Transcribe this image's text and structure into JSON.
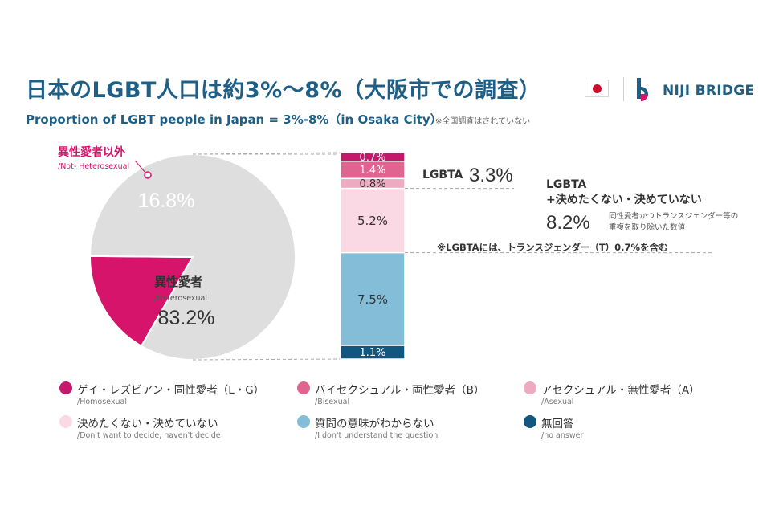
{
  "header": {
    "title": "日本のLGBT人口は約3%〜8%（大阪市での調査）",
    "subtitle": "Proportion of LGBT people in Japan = 3%-8%（in Osaka City）",
    "note": "※全国調査はされていない",
    "brand": "NIJI BRIDGE",
    "icons": [
      "japan-flag-icon",
      "niji-bridge-logo-icon"
    ]
  },
  "chart_data": {
    "type": "pie-of-bar",
    "pie": {
      "slices": [
        {
          "label": "異性愛者以外",
          "sublabel": "/Not- Heterosexual",
          "value": 16.8,
          "display": "16.8%",
          "color": "#d6146c"
        },
        {
          "label": "異性愛者",
          "sublabel": "/Heterosexual",
          "value": 83.2,
          "display": "83.2%",
          "color": "#dedede"
        }
      ]
    },
    "bar": {
      "segments": [
        {
          "value": 0.7,
          "display": "0.7%",
          "color": "#c5186d"
        },
        {
          "value": 1.4,
          "display": "1.4%",
          "color": "#e0648f"
        },
        {
          "value": 0.8,
          "display": "0.8%",
          "color": "#eeaac0"
        },
        {
          "value": 5.2,
          "display": "5.2%",
          "color": "#fbd9e4"
        },
        {
          "value": 7.5,
          "display": "7.5%",
          "color": "#84bdd8"
        },
        {
          "value": 1.1,
          "display": "1.1%",
          "color": "#12577f"
        }
      ]
    },
    "annotations": {
      "lgbta_label": "LGBTA",
      "lgbta_value": "3.3%",
      "total_label_1": "LGBTA",
      "total_label_2": "+決めたくない・決めていない",
      "total_value": "8.2%",
      "total_note_1": "同性愛者かつトランスジェンダー等の",
      "total_note_2": "重複を取り除いた数値",
      "trans_note": "※LGBTAには、トランスジェンダー（T）0.7%を含む"
    },
    "legend_placement": "bottom"
  },
  "legend": [
    {
      "label": "ゲイ・レズビアン・同性愛者（L・G）",
      "sublabel": "/Homosexual",
      "color": "#c5186d"
    },
    {
      "label": "バイセクシュアル・両性愛者（B）",
      "sublabel": "/Bisexual",
      "color": "#e0648f"
    },
    {
      "label": "アセクシュアル・無性愛者（A）",
      "sublabel": "/Asexual",
      "color": "#eeaac0"
    },
    {
      "label": "決めたくない・決めていない",
      "sublabel": "/Don't want to decide, haven't decide",
      "color": "#fbd9e4"
    },
    {
      "label": "質問の意味がわからない",
      "sublabel": "/I don't understand the question",
      "color": "#84bdd8"
    },
    {
      "label": "無回答",
      "sublabel": "/no answer",
      "color": "#12577f"
    }
  ]
}
